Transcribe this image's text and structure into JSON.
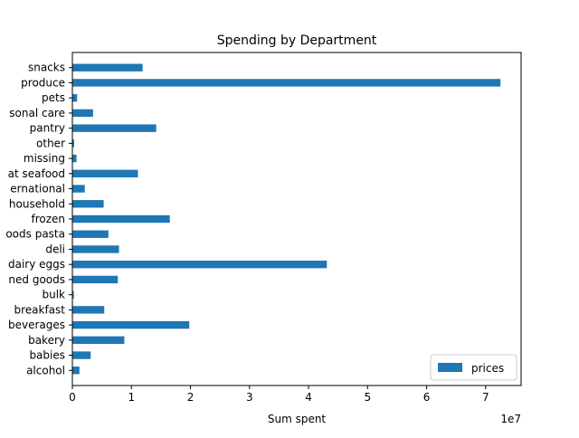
{
  "chart_data": {
    "type": "bar",
    "orientation": "horizontal",
    "title": "Spending by Department",
    "xlabel": "Sum spent",
    "ylabel": "",
    "x_offset_label": "1e7",
    "x_scale_factor": 10000000,
    "xlim": [
      0,
      76000000
    ],
    "x_ticks": [
      0,
      10000000,
      20000000,
      30000000,
      40000000,
      50000000,
      60000000,
      70000000
    ],
    "x_tick_labels": [
      "0",
      "1",
      "2",
      "3",
      "4",
      "5",
      "6",
      "7"
    ],
    "grid": false,
    "legend_position": "lower-right",
    "categories": [
      "alcohol",
      "babies",
      "bakery",
      "beverages",
      "breakfast",
      "bulk",
      "canned goods",
      "dairy eggs",
      "deli",
      "dry goods pasta",
      "frozen",
      "household",
      "international",
      "meat seafood",
      "missing",
      "other",
      "pantry",
      "personal care",
      "pets",
      "produce",
      "snacks"
    ],
    "tick_labels": [
      "alcohol",
      "babies",
      "bakery",
      "beverages",
      "breakfast",
      "bulk",
      "ned goods",
      "dairy eggs",
      "deli",
      "oods pasta",
      "frozen",
      "household",
      "ernational",
      "at seafood",
      "missing",
      "other",
      "pantry",
      "sonal care",
      "pets",
      "produce",
      "snacks"
    ],
    "series": [
      {
        "name": "prices",
        "color": "#1f77b4",
        "values": [
          1200000,
          3100000,
          8800000,
          19800000,
          5400000,
          250000,
          7700000,
          43100000,
          7900000,
          6100000,
          16500000,
          5300000,
          2100000,
          11100000,
          700000,
          300000,
          14200000,
          3500000,
          800000,
          72500000,
          11900000
        ]
      }
    ]
  }
}
